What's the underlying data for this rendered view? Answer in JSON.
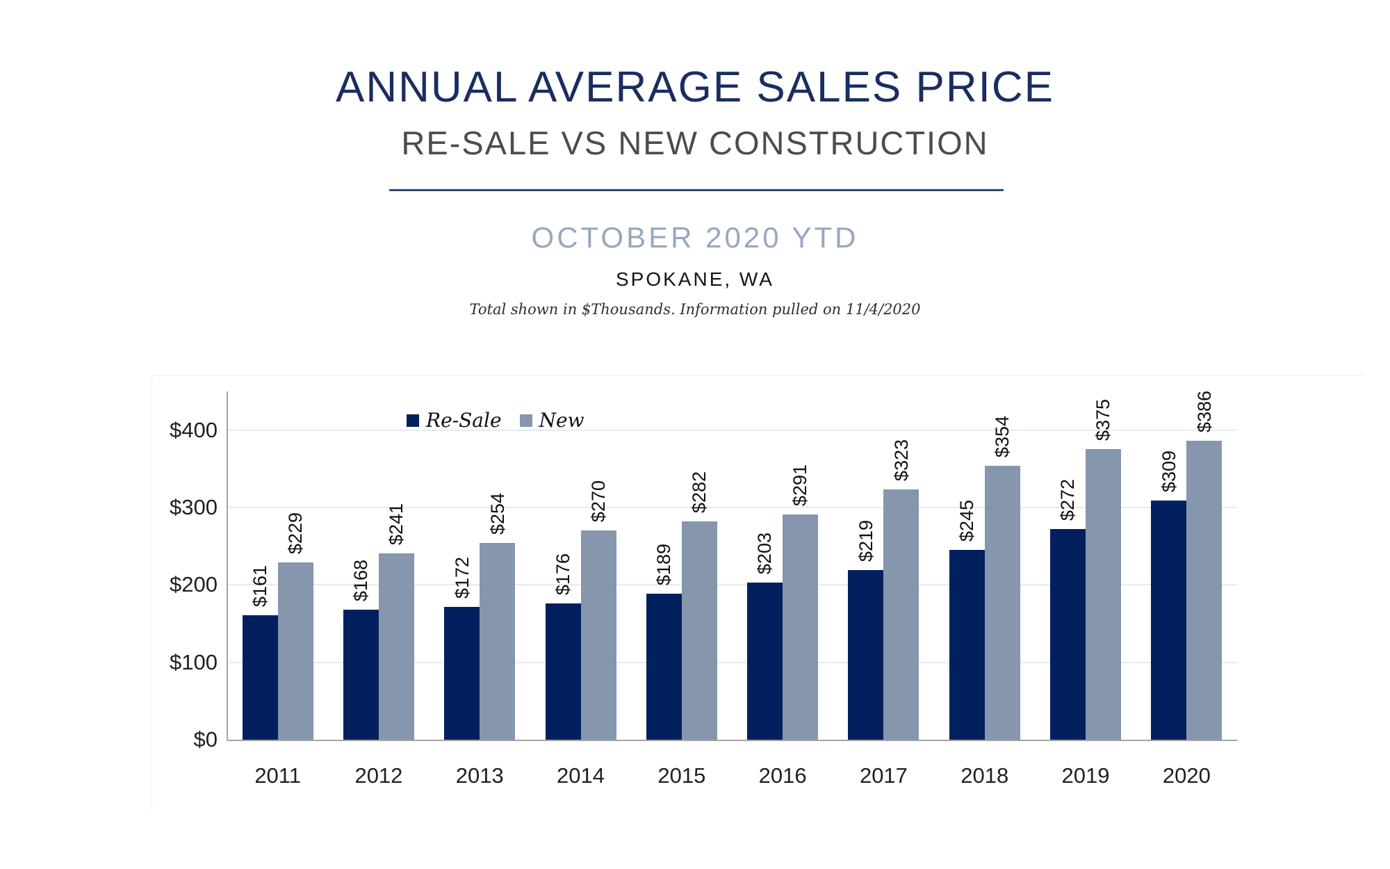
{
  "header": {
    "title": "ANNUAL AVERAGE SALES PRICE",
    "subtitle": "RE-SALE VS NEW CONSTRUCTION",
    "period": "OCTOBER 2020 YTD",
    "location": "SPOKANE, WA",
    "note": "Total shown in $Thousands. Information pulled on 11/4/2020"
  },
  "colors": {
    "title_navy": "#1a2d62",
    "subtitle_gray": "#4c4c4c",
    "period_blue": "#96a7c2",
    "divider_navy": "#2d4a74",
    "resale_bar": "#01205d",
    "new_bar": "#8596ad",
    "gridline": "#e8eaf2",
    "axis": "#a3a3a3"
  },
  "chart_data": {
    "type": "bar",
    "title": "Annual Average Sales Price — Re-Sale vs New Construction, October 2020 YTD, Spokane WA",
    "categories": [
      "2011",
      "2012",
      "2013",
      "2014",
      "2015",
      "2016",
      "2017",
      "2018",
      "2019",
      "2020"
    ],
    "series": [
      {
        "name": "Re-Sale",
        "color": "#01205d",
        "values": [
          161,
          168,
          172,
          176,
          189,
          203,
          219,
          245,
          272,
          309
        ]
      },
      {
        "name": "New",
        "color": "#8596ad",
        "values": [
          229,
          241,
          254,
          270,
          282,
          291,
          323,
          354,
          375,
          386
        ]
      }
    ],
    "value_prefix": "$",
    "units": "$Thousands",
    "yticks": [
      0,
      100,
      200,
      300,
      400
    ],
    "ylim": [
      0,
      450
    ],
    "grid": true,
    "legend_position": "top-center-inside",
    "bar_labels_rotated": true
  }
}
